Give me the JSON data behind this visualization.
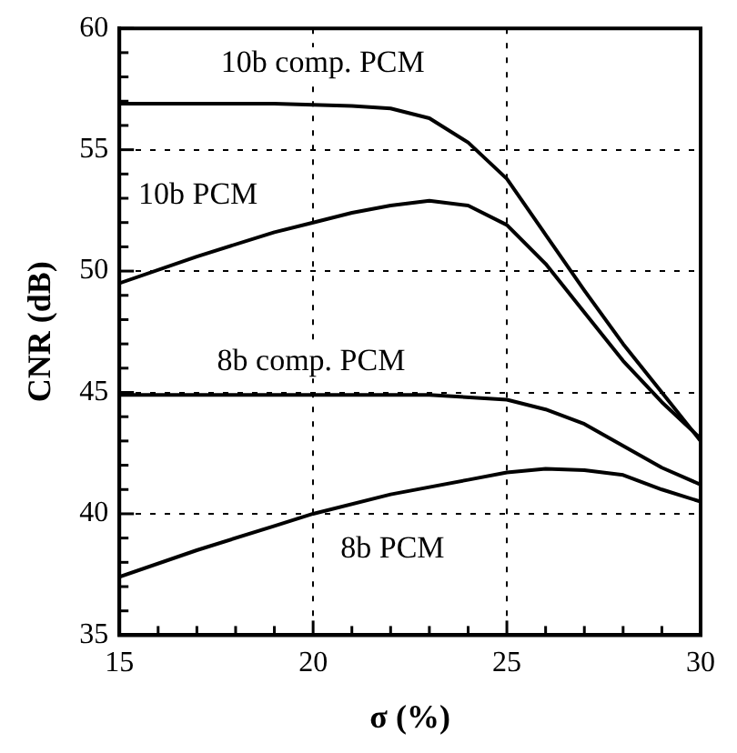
{
  "chart_data": {
    "type": "line",
    "xlabel": "σ (%)",
    "ylabel": "CNR (dB)",
    "xlim": [
      15,
      30
    ],
    "ylim": [
      35,
      60
    ],
    "xticks": [
      15,
      {
        "value": 16,
        "label": null
      },
      {
        "value": 17,
        "label": null
      },
      {
        "value": 18,
        "label": null
      },
      {
        "value": 19,
        "label": null
      },
      20,
      {
        "value": 21,
        "label": null
      },
      {
        "value": 22,
        "label": null
      },
      {
        "value": 23,
        "label": null
      },
      {
        "value": 24,
        "label": null
      },
      25,
      {
        "value": 26,
        "label": null
      },
      {
        "value": 27,
        "label": null
      },
      {
        "value": 28,
        "label": null
      },
      {
        "value": 29,
        "label": null
      },
      30
    ],
    "yticks": [
      35,
      {
        "value": 36,
        "label": null
      },
      {
        "value": 37,
        "label": null
      },
      {
        "value": 38,
        "label": null
      },
      {
        "value": 39,
        "label": null
      },
      40,
      {
        "value": 41,
        "label": null
      },
      {
        "value": 42,
        "label": null
      },
      {
        "value": 43,
        "label": null
      },
      {
        "value": 44,
        "label": null
      },
      45,
      {
        "value": 46,
        "label": null
      },
      {
        "value": 47,
        "label": null
      },
      {
        "value": 48,
        "label": null
      },
      {
        "value": 49,
        "label": null
      },
      50,
      {
        "value": 51,
        "label": null
      },
      {
        "value": 52,
        "label": null
      },
      {
        "value": 53,
        "label": null
      },
      {
        "value": 54,
        "label": null
      },
      55,
      {
        "value": 56,
        "label": null
      },
      {
        "value": 57,
        "label": null
      },
      {
        "value": 58,
        "label": null
      },
      {
        "value": 59,
        "label": null
      },
      60
    ],
    "grid": true,
    "legend": false,
    "marker": "none",
    "line_style": "solid",
    "series": [
      {
        "name": "10b comp. PCM",
        "color": "#000000",
        "x": [
          15,
          17,
          19,
          21,
          22,
          23,
          24,
          25,
          26,
          27,
          28,
          29,
          30
        ],
        "values": [
          56.9,
          56.9,
          56.9,
          56.8,
          56.7,
          56.3,
          55.3,
          53.8,
          51.5,
          49.2,
          47,
          45,
          43
        ]
      },
      {
        "name": "10b PCM",
        "color": "#000000",
        "x": [
          15,
          17,
          19,
          20,
          21,
          22,
          23,
          24,
          25,
          26,
          27,
          28,
          29,
          30
        ],
        "values": [
          49.5,
          50.6,
          51.6,
          52,
          52.4,
          52.7,
          52.9,
          52.7,
          51.9,
          50.3,
          48.3,
          46.3,
          44.6,
          43.1
        ]
      },
      {
        "name": "8b comp. PCM",
        "color": "#000000",
        "x": [
          15,
          20,
          23,
          25,
          26,
          27,
          28,
          29,
          30
        ],
        "values": [
          44.9,
          44.9,
          44.9,
          44.7,
          44.3,
          43.7,
          42.8,
          41.9,
          41.2
        ]
      },
      {
        "name": "8b PCM",
        "color": "#000000",
        "x": [
          15,
          17,
          19,
          20,
          22,
          24,
          25,
          26,
          27,
          28,
          29,
          30
        ],
        "values": [
          37.4,
          38.5,
          39.5,
          40,
          40.8,
          41.4,
          41.7,
          41.85,
          41.8,
          41.6,
          41,
          40.5
        ]
      }
    ]
  }
}
